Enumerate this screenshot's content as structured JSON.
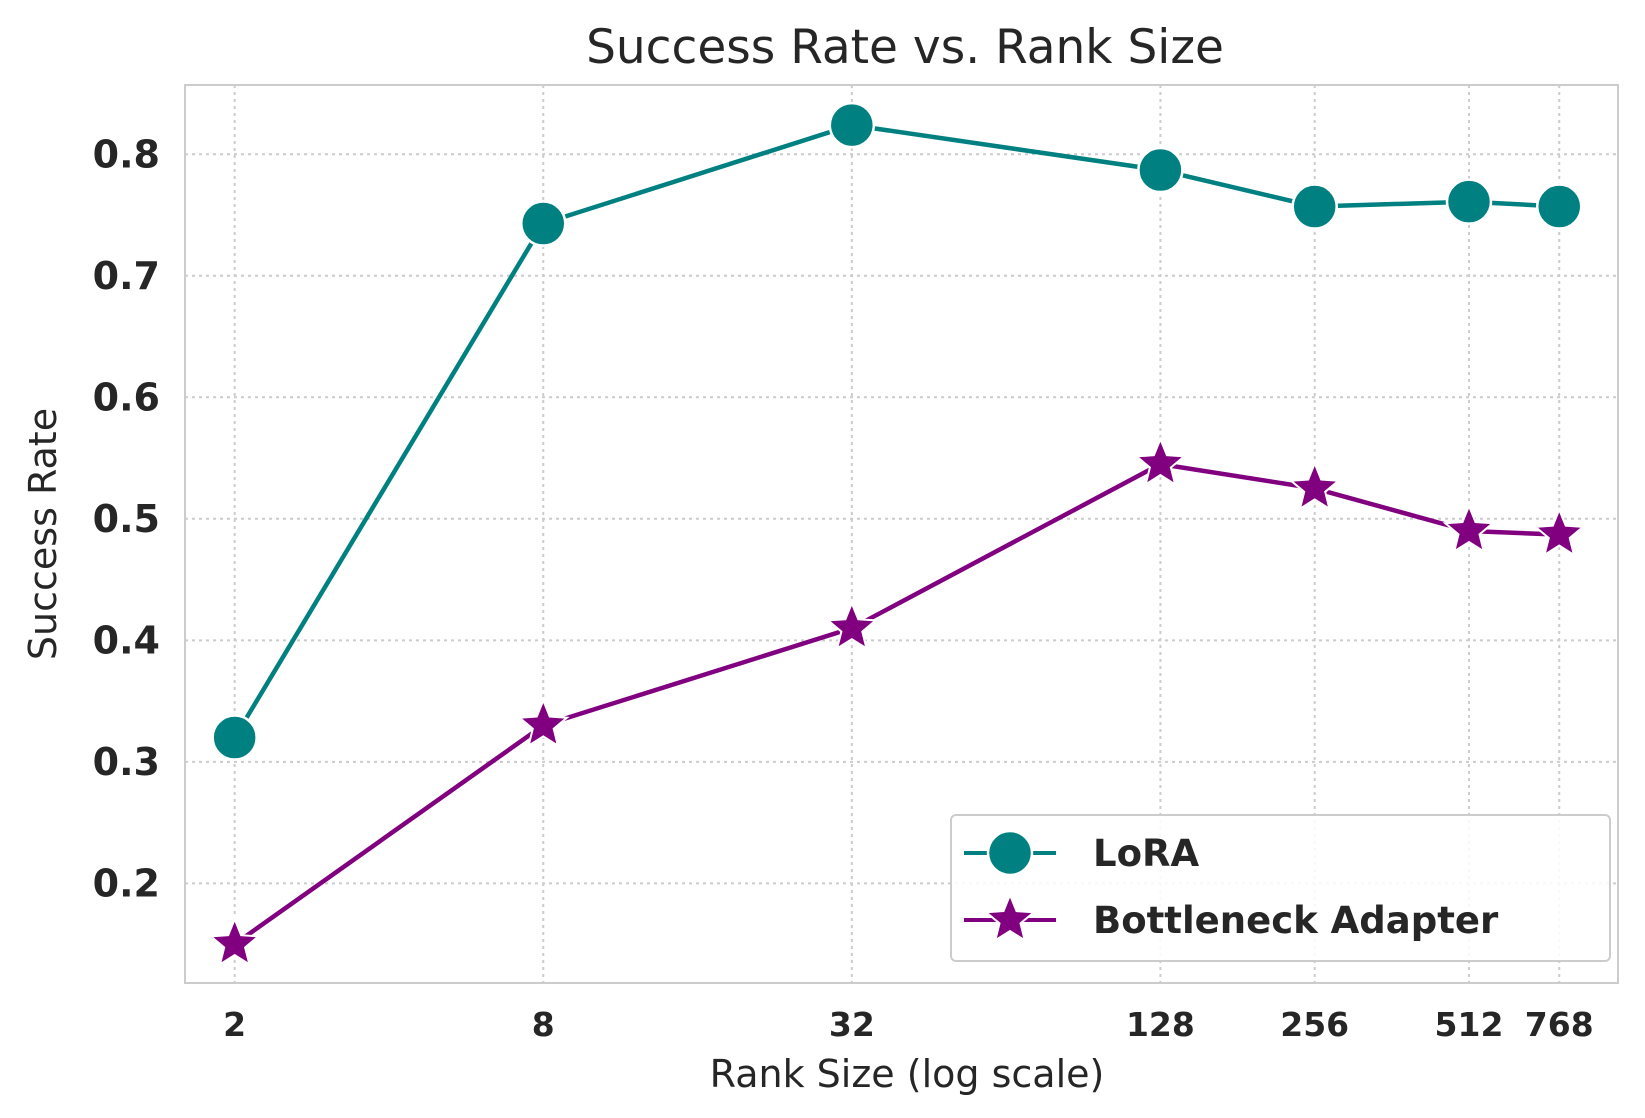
{
  "chart_data": {
    "type": "line",
    "title": "Success Rate vs. Rank Size",
    "xlabel": "Rank Size (log scale)",
    "ylabel": "Success Rate",
    "x": [
      2,
      8,
      32,
      128,
      256,
      512,
      768
    ],
    "x_tick_labels": [
      "2",
      "8",
      "32",
      "128",
      "256",
      "512",
      "768"
    ],
    "xscale": "log",
    "xlim": [
      1.6,
      1000
    ],
    "ylim": [
      0.118,
      0.857
    ],
    "y_ticks": [
      0.2,
      0.3,
      0.4,
      0.5,
      0.6,
      0.7,
      0.8
    ],
    "y_tick_labels": [
      "0.2",
      "0.3",
      "0.4",
      "0.5",
      "0.6",
      "0.7",
      "0.8"
    ],
    "grid": true,
    "legend_position": "bottom-right",
    "series": [
      {
        "name": "LoRA",
        "values": [
          0.32,
          0.743,
          0.824,
          0.787,
          0.757,
          0.761,
          0.757
        ],
        "color": "#008080",
        "marker": "circle"
      },
      {
        "name": "Bottleneck Adapter",
        "values": [
          0.15,
          0.33,
          0.41,
          0.545,
          0.525,
          0.49,
          0.487
        ],
        "color": "#800080",
        "marker": "star"
      }
    ]
  }
}
